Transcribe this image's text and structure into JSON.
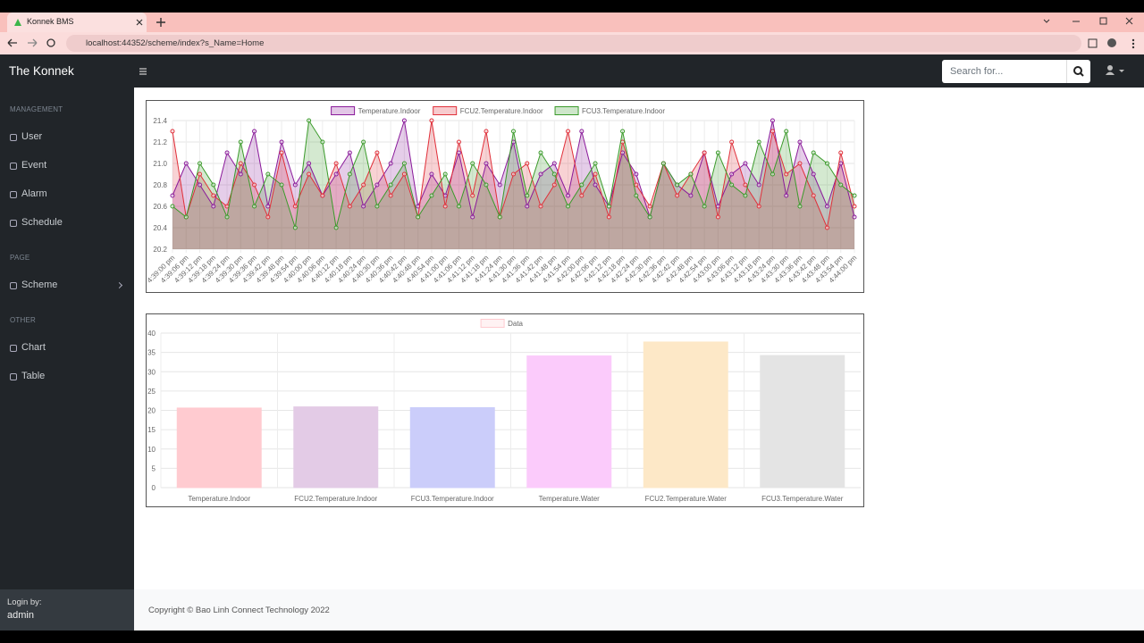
{
  "browser": {
    "tab_title": "Konnek BMS",
    "url": "localhost:44352/scheme/index?s_Name=Home"
  },
  "app": {
    "brand": "The Konnek",
    "search_placeholder": "Search for...",
    "sidebar": [
      {
        "heading": "MANAGEMENT",
        "items": [
          "User",
          "Event",
          "Alarm",
          "Schedule"
        ]
      },
      {
        "heading": "PAGE",
        "items": [
          "Scheme"
        ]
      },
      {
        "heading": "OTHER",
        "items": [
          "Chart",
          "Table"
        ]
      }
    ],
    "login_label": "Login by:",
    "user": "admin",
    "footer": "Copyright © Bao Linh Connect Technology 2022"
  },
  "chart_data": [
    {
      "type": "line",
      "categories": [
        "4:39:00 pm",
        "4:39:06 pm",
        "4:39:12 pm",
        "4:39:18 pm",
        "4:39:24 pm",
        "4:39:30 pm",
        "4:39:36 pm",
        "4:39:42 pm",
        "4:39:48 pm",
        "4:39:54 pm",
        "4:40:00 pm",
        "4:40:06 pm",
        "4:40:12 pm",
        "4:40:18 pm",
        "4:40:24 pm",
        "4:40:30 pm",
        "4:40:36 pm",
        "4:40:42 pm",
        "4:40:48 pm",
        "4:40:54 pm",
        "4:41:00 pm",
        "4:41:06 pm",
        "4:41:12 pm",
        "4:41:18 pm",
        "4:41:24 pm",
        "4:41:30 pm",
        "4:41:36 pm",
        "4:41:42 pm",
        "4:41:48 pm",
        "4:41:54 pm",
        "4:42:00 pm",
        "4:42:06 pm",
        "4:42:12 pm",
        "4:42:18 pm",
        "4:42:24 pm",
        "4:42:30 pm",
        "4:42:36 pm",
        "4:42:42 pm",
        "4:42:48 pm",
        "4:42:54 pm",
        "4:43:00 pm",
        "4:43:06 pm",
        "4:43:12 pm",
        "4:43:18 pm",
        "4:43:24 pm",
        "4:43:30 pm",
        "4:43:36 pm",
        "4:43:42 pm",
        "4:43:48 pm",
        "4:43:54 pm",
        "4:44:00 pm"
      ],
      "series": [
        {
          "name": "Temperature.Indoor",
          "color": "#8a1a9a",
          "values": [
            20.7,
            21.0,
            20.8,
            20.6,
            21.1,
            20.9,
            21.3,
            20.6,
            21.2,
            20.8,
            21.0,
            20.7,
            20.9,
            21.1,
            20.6,
            20.8,
            21.0,
            21.4,
            20.6,
            20.9,
            20.7,
            21.1,
            20.5,
            21.0,
            20.8,
            21.2,
            20.6,
            20.9,
            21.0,
            20.7,
            21.3,
            20.8,
            20.6,
            21.1,
            20.9,
            20.5,
            21.0,
            20.8,
            20.7,
            21.1,
            20.6,
            20.9,
            21.0,
            20.8,
            21.4,
            20.7,
            21.2,
            20.9,
            20.6,
            21.0,
            20.5
          ]
        },
        {
          "name": "FCU2.Temperature.Indoor",
          "color": "#e0303a",
          "values": [
            21.3,
            20.5,
            20.9,
            20.7,
            20.6,
            21.0,
            20.8,
            20.5,
            21.1,
            20.6,
            20.9,
            20.7,
            21.0,
            20.6,
            20.8,
            21.1,
            20.7,
            20.9,
            20.5,
            21.4,
            20.6,
            21.2,
            20.7,
            21.3,
            20.5,
            20.9,
            21.0,
            20.6,
            20.8,
            21.3,
            20.7,
            20.9,
            20.5,
            21.2,
            20.8,
            20.6,
            21.0,
            20.7,
            20.9,
            21.1,
            20.5,
            21.2,
            20.8,
            20.6,
            21.3,
            20.9,
            21.0,
            20.7,
            20.4,
            21.1,
            20.6
          ]
        },
        {
          "name": "FCU3.Temperature.Indoor",
          "color": "#3a9a2a",
          "values": [
            20.6,
            20.5,
            21.0,
            20.8,
            20.5,
            21.2,
            20.6,
            20.9,
            20.8,
            20.4,
            21.4,
            21.2,
            20.4,
            20.9,
            21.2,
            20.6,
            20.8,
            21.0,
            20.5,
            20.7,
            20.9,
            20.6,
            21.0,
            20.8,
            20.5,
            21.3,
            20.7,
            21.1,
            20.9,
            20.6,
            20.8,
            21.0,
            20.6,
            21.3,
            20.7,
            20.5,
            21.0,
            20.8,
            20.9,
            20.6,
            21.1,
            20.8,
            20.7,
            21.2,
            20.9,
            21.3,
            20.6,
            21.1,
            21.0,
            20.8,
            20.7
          ]
        }
      ],
      "ylim": [
        20.2,
        21.4
      ],
      "yticks": [
        20.2,
        20.4,
        20.6,
        20.8,
        {
          "value": 21,
          "label": "21.0"
        },
        21.2,
        21.4
      ],
      "grid": true,
      "legend": "top"
    },
    {
      "type": "bar",
      "categories": [
        "Temperature.Indoor",
        "FCU2.Temperature.Indoor",
        "FCU3.Temperature.Indoor",
        "Temperature.Water",
        "FCU2.Temperature.Water",
        "FCU3.Temperature.Water"
      ],
      "series": [
        {
          "name": "Data",
          "values": [
            20.6,
            20.9,
            20.7,
            34.1,
            37.7,
            34.2
          ],
          "colors": [
            "#ffcbd0",
            "#e3cbe6",
            "#cbcdfa",
            "#fbcbfb",
            "#fde8c7",
            "#e4e4e4"
          ]
        }
      ],
      "ylim": [
        0,
        40
      ],
      "yticks": [
        0,
        5,
        10,
        15,
        20,
        25,
        30,
        35,
        40
      ],
      "grid": true,
      "legend": "top"
    }
  ]
}
